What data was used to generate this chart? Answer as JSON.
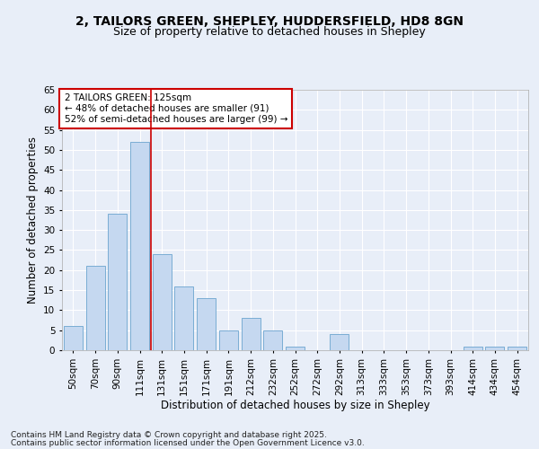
{
  "title1": "2, TAILORS GREEN, SHEPLEY, HUDDERSFIELD, HD8 8GN",
  "title2": "Size of property relative to detached houses in Shepley",
  "xlabel": "Distribution of detached houses by size in Shepley",
  "ylabel": "Number of detached properties",
  "categories": [
    "50sqm",
    "70sqm",
    "90sqm",
    "111sqm",
    "131sqm",
    "151sqm",
    "171sqm",
    "191sqm",
    "212sqm",
    "232sqm",
    "252sqm",
    "272sqm",
    "292sqm",
    "313sqm",
    "333sqm",
    "353sqm",
    "373sqm",
    "393sqm",
    "414sqm",
    "434sqm",
    "454sqm"
  ],
  "values": [
    6,
    21,
    34,
    52,
    24,
    16,
    13,
    5,
    8,
    5,
    1,
    0,
    4,
    0,
    0,
    0,
    0,
    0,
    1,
    1,
    1
  ],
  "bar_color": "#c5d8f0",
  "bar_edge_color": "#7aadd4",
  "vline_x": 3.5,
  "vline_color": "#cc0000",
  "annotation_title": "2 TAILORS GREEN: 125sqm",
  "annotation_line1": "← 48% of detached houses are smaller (91)",
  "annotation_line2": "52% of semi-detached houses are larger (99) →",
  "annotation_box_color": "#ffffff",
  "annotation_box_edge": "#cc0000",
  "ylim": [
    0,
    65
  ],
  "yticks": [
    0,
    5,
    10,
    15,
    20,
    25,
    30,
    35,
    40,
    45,
    50,
    55,
    60,
    65
  ],
  "footer1": "Contains HM Land Registry data © Crown copyright and database right 2025.",
  "footer2": "Contains public sector information licensed under the Open Government Licence v3.0.",
  "bg_color": "#e8eef8",
  "plot_bg_color": "#e8eef8",
  "grid_color": "#ffffff",
  "title_fontsize": 10,
  "subtitle_fontsize": 9,
  "axis_label_fontsize": 8.5,
  "tick_fontsize": 7.5,
  "footer_fontsize": 6.5
}
